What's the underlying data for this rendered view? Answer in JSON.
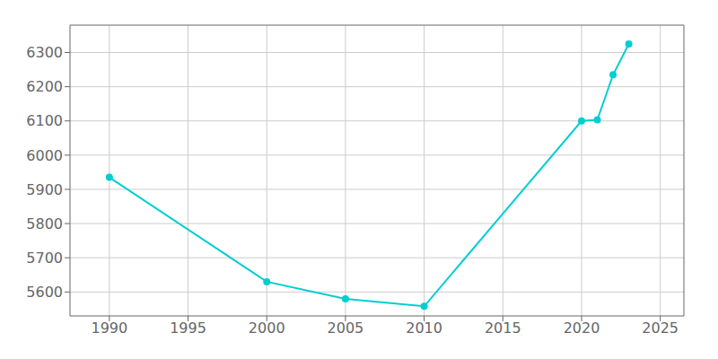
{
  "chart_data": {
    "type": "line",
    "x": [
      1990,
      2000,
      2005,
      2010,
      2020,
      2021,
      2022,
      2023
    ],
    "values": [
      5935,
      5630,
      5580,
      5558,
      6100,
      6103,
      6235,
      6325
    ],
    "color": "#00CED1",
    "xlim": [
      1987.5,
      2026.5
    ],
    "ylim": [
      5530,
      6380
    ],
    "xticks": [
      1990,
      1995,
      2000,
      2005,
      2010,
      2015,
      2020,
      2025
    ],
    "yticks": [
      5600,
      5700,
      5800,
      5900,
      6000,
      6100,
      6200,
      6300
    ],
    "grid": true,
    "marker": "circle"
  }
}
